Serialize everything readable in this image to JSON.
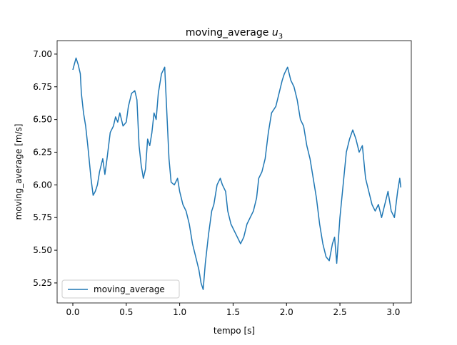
{
  "chart_data": {
    "type": "line",
    "title": "moving_average",
    "title_math": {
      "base": "u",
      "sub": "3"
    },
    "xlabel": "tempo [s]",
    "ylabel": "moving_average [m/s]",
    "legend": "lower left",
    "xlim": [
      -0.147,
      3.168
    ],
    "ylim": [
      5.097,
      7.103
    ],
    "xticks": [
      {
        "value": 0,
        "label": "0.0"
      },
      0.5,
      {
        "value": 1,
        "label": "1.0"
      },
      1.5,
      {
        "value": 2,
        "label": "2.0"
      },
      2.5,
      {
        "value": 3,
        "label": "3.0"
      }
    ],
    "yticks": [
      {
        "value": 5.25,
        "label": "5.25"
      },
      {
        "value": 5.5,
        "label": "5.50"
      },
      5.75,
      {
        "value": 6,
        "label": "6.00"
      },
      6.25,
      {
        "value": 6.5,
        "label": "6.50"
      },
      6.75,
      {
        "value": 7,
        "label": "7.00"
      }
    ],
    "x": [
      0.0,
      0.03,
      0.05,
      0.07,
      0.08,
      0.1,
      0.12,
      0.14,
      0.17,
      0.19,
      0.21,
      0.23,
      0.25,
      0.28,
      0.3,
      0.32,
      0.35,
      0.38,
      0.4,
      0.42,
      0.44,
      0.47,
      0.5,
      0.52,
      0.55,
      0.58,
      0.6,
      0.62,
      0.64,
      0.66,
      0.68,
      0.7,
      0.72,
      0.74,
      0.76,
      0.78,
      0.8,
      0.83,
      0.86,
      0.88,
      0.9,
      0.92,
      0.95,
      0.98,
      1.0,
      1.03,
      1.06,
      1.09,
      1.12,
      1.15,
      1.18,
      1.2,
      1.22,
      1.24,
      1.27,
      1.3,
      1.32,
      1.35,
      1.38,
      1.4,
      1.43,
      1.45,
      1.48,
      1.51,
      1.54,
      1.57,
      1.6,
      1.63,
      1.66,
      1.69,
      1.72,
      1.74,
      1.77,
      1.8,
      1.83,
      1.86,
      1.9,
      1.93,
      1.96,
      1.98,
      2.01,
      2.04,
      2.07,
      2.1,
      2.13,
      2.16,
      2.19,
      2.22,
      2.25,
      2.28,
      2.31,
      2.34,
      2.37,
      2.4,
      2.43,
      2.45,
      2.47,
      2.5,
      2.53,
      2.56,
      2.59,
      2.62,
      2.65,
      2.68,
      2.71,
      2.74,
      2.77,
      2.8,
      2.83,
      2.86,
      2.89,
      2.92,
      2.95,
      2.98,
      3.01,
      3.04,
      3.06,
      3.07
    ],
    "series": [
      {
        "name": "moving_average",
        "color": "#1f77b4",
        "values": [
          6.88,
          6.97,
          6.92,
          6.85,
          6.7,
          6.55,
          6.45,
          6.3,
          6.05,
          5.92,
          5.95,
          6.0,
          6.1,
          6.2,
          6.08,
          6.2,
          6.4,
          6.45,
          6.52,
          6.48,
          6.55,
          6.45,
          6.48,
          6.6,
          6.7,
          6.72,
          6.65,
          6.3,
          6.15,
          6.05,
          6.12,
          6.35,
          6.3,
          6.4,
          6.55,
          6.5,
          6.7,
          6.85,
          6.9,
          6.55,
          6.2,
          6.02,
          6.0,
          6.05,
          5.95,
          5.85,
          5.8,
          5.7,
          5.55,
          5.45,
          5.35,
          5.25,
          5.2,
          5.4,
          5.62,
          5.8,
          5.85,
          6.0,
          6.05,
          6.0,
          5.95,
          5.8,
          5.7,
          5.65,
          5.6,
          5.55,
          5.6,
          5.7,
          5.75,
          5.8,
          5.9,
          6.05,
          6.1,
          6.2,
          6.4,
          6.55,
          6.6,
          6.7,
          6.8,
          6.85,
          6.9,
          6.8,
          6.75,
          6.65,
          6.5,
          6.45,
          6.3,
          6.2,
          6.05,
          5.9,
          5.7,
          5.55,
          5.45,
          5.42,
          5.55,
          5.6,
          5.4,
          5.75,
          6.0,
          6.25,
          6.35,
          6.42,
          6.35,
          6.25,
          6.3,
          6.05,
          5.95,
          5.85,
          5.8,
          5.85,
          5.75,
          5.85,
          5.95,
          5.8,
          5.75,
          5.95,
          6.05,
          5.98
        ]
      }
    ]
  }
}
